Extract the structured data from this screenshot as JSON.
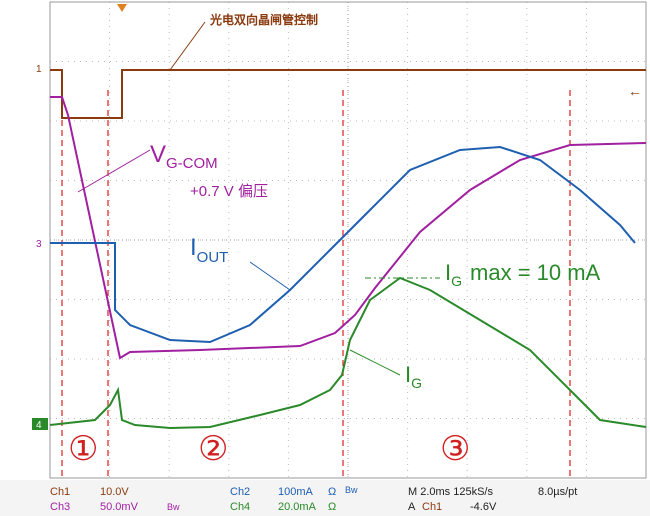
{
  "annotations": {
    "optocoupler_label": "光电双向晶闸管控制",
    "vgcom_main": "V",
    "vgcom_sub": "G-COM",
    "bias": "+0.7 V 偏压",
    "iout_main": "I",
    "iout_sub": "OUT",
    "igmax_main": "I",
    "igmax_sub": "G",
    "igmax_rest": "max = 10 mA",
    "ig_main": "I",
    "ig_sub": "G",
    "regions": [
      "①",
      "②",
      "③"
    ]
  },
  "channel_markers": [
    "1",
    "3",
    "4"
  ],
  "status": {
    "ch1": "Ch1",
    "ch1_scale": "10.0V",
    "ch3": "Ch3",
    "ch3_scale": "50.0mV",
    "ch3_bw": "Bw",
    "ch2": "Ch2",
    "ch2_scale": "100mA",
    "ch2_ohm": "Ω",
    "ch2_bw": "Bw",
    "ch4": "Ch4",
    "ch4_scale": "20.0mA",
    "ch4_ohm": "Ω",
    "timebase": "M 2.0ms 125kS/s",
    "resolution": "8.0µs/pt",
    "trigger_mode": "A",
    "trigger_source": "Ch1",
    "trigger_level": "-4.6V"
  }
}
